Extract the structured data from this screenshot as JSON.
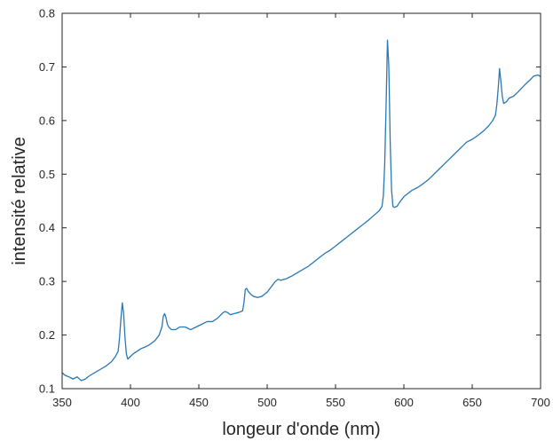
{
  "chart_data": {
    "type": "line",
    "title": "",
    "xlabel": "longeur d'onde (nm)",
    "ylabel": "intensité relative",
    "xlim": [
      350,
      700
    ],
    "ylim": [
      0.1,
      0.8
    ],
    "xticks": [
      350,
      400,
      450,
      500,
      550,
      600,
      650,
      700
    ],
    "yticks": [
      0.1,
      0.2,
      0.3,
      0.4,
      0.5,
      0.6,
      0.7,
      0.8
    ],
    "xtick_labels": [
      "350",
      "400",
      "450",
      "500",
      "550",
      "600",
      "650",
      "700"
    ],
    "ytick_labels": [
      "0.1",
      "0.2",
      "0.3",
      "0.4",
      "0.5",
      "0.6",
      "0.7",
      "0.8"
    ],
    "grid": false,
    "line_color": "#2878b5",
    "series": [
      {
        "x": [
          350,
          352,
          355,
          358,
          361,
          364,
          367,
          370,
          374,
          378,
          382,
          386,
          389,
          391,
          392,
          393,
          394,
          395,
          396,
          397,
          398,
          400,
          402,
          405,
          408,
          411,
          414,
          418,
          421,
          423,
          424,
          425,
          426,
          427,
          428,
          430,
          433,
          436,
          440,
          444,
          448,
          452,
          456,
          460,
          464,
          467,
          469,
          471,
          473,
          476,
          479,
          482,
          483,
          484,
          485,
          486,
          488,
          490,
          493,
          496,
          500,
          503,
          506,
          508,
          510,
          514,
          518,
          522,
          526,
          530,
          534,
          538,
          542,
          546,
          550,
          554,
          558,
          562,
          566,
          570,
          574,
          578,
          582,
          584,
          585,
          586,
          587,
          588,
          589,
          590,
          591,
          592,
          593,
          595,
          597,
          600,
          603,
          606,
          610,
          614,
          618,
          622,
          626,
          630,
          634,
          638,
          642,
          646,
          650,
          654,
          658,
          662,
          665,
          667,
          668,
          669,
          670,
          671,
          672,
          673,
          675,
          677,
          680,
          683,
          686,
          689,
          692,
          695,
          698,
          700
        ],
        "y": [
          0.13,
          0.125,
          0.122,
          0.118,
          0.122,
          0.115,
          0.118,
          0.124,
          0.13,
          0.136,
          0.142,
          0.15,
          0.16,
          0.17,
          0.195,
          0.23,
          0.26,
          0.24,
          0.195,
          0.165,
          0.155,
          0.16,
          0.165,
          0.17,
          0.175,
          0.178,
          0.182,
          0.19,
          0.2,
          0.215,
          0.235,
          0.24,
          0.232,
          0.22,
          0.215,
          0.21,
          0.21,
          0.215,
          0.215,
          0.21,
          0.215,
          0.22,
          0.225,
          0.225,
          0.232,
          0.24,
          0.244,
          0.242,
          0.238,
          0.24,
          0.242,
          0.245,
          0.26,
          0.285,
          0.287,
          0.282,
          0.276,
          0.272,
          0.27,
          0.272,
          0.28,
          0.29,
          0.3,
          0.304,
          0.302,
          0.305,
          0.31,
          0.316,
          0.322,
          0.328,
          0.336,
          0.344,
          0.352,
          0.358,
          0.366,
          0.374,
          0.382,
          0.39,
          0.398,
          0.406,
          0.414,
          0.423,
          0.432,
          0.44,
          0.46,
          0.52,
          0.63,
          0.75,
          0.7,
          0.56,
          0.47,
          0.44,
          0.438,
          0.44,
          0.448,
          0.458,
          0.464,
          0.47,
          0.475,
          0.482,
          0.49,
          0.5,
          0.51,
          0.52,
          0.53,
          0.54,
          0.55,
          0.56,
          0.565,
          0.572,
          0.58,
          0.59,
          0.6,
          0.61,
          0.63,
          0.66,
          0.697,
          0.672,
          0.645,
          0.632,
          0.635,
          0.642,
          0.645,
          0.652,
          0.66,
          0.668,
          0.675,
          0.683,
          0.685,
          0.682
        ]
      }
    ]
  }
}
